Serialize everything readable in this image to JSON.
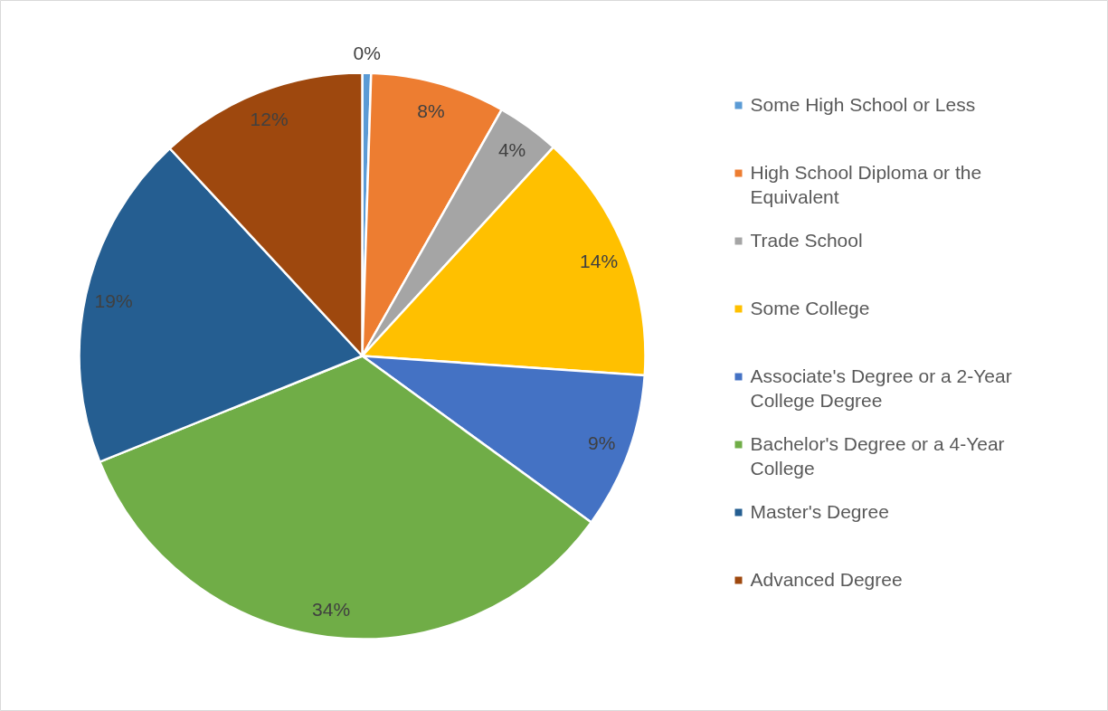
{
  "chart_data": {
    "type": "pie",
    "categories": [
      "Some High School or Less",
      "High School Diploma or the Equivalent",
      "Trade School",
      "Some College",
      "Associate's Degree or a 2-Year College Degree",
      "Bachelor's Degree or a 4-Year College",
      "Master's Degree",
      "Advanced Degree"
    ],
    "values": [
      0.5,
      7.7,
      3.6,
      14.3,
      8.9,
      33.9,
      19.2,
      11.9
    ],
    "value_labels": [
      "0%",
      "8%",
      "4%",
      "14%",
      "9%",
      "34%",
      "19%",
      "12%"
    ],
    "colors": [
      "#5b9bd5",
      "#ed7d31",
      "#a5a5a5",
      "#ffc000",
      "#4472c4",
      "#70ad47",
      "#255e91",
      "#9e480e"
    ],
    "legend": "right"
  }
}
